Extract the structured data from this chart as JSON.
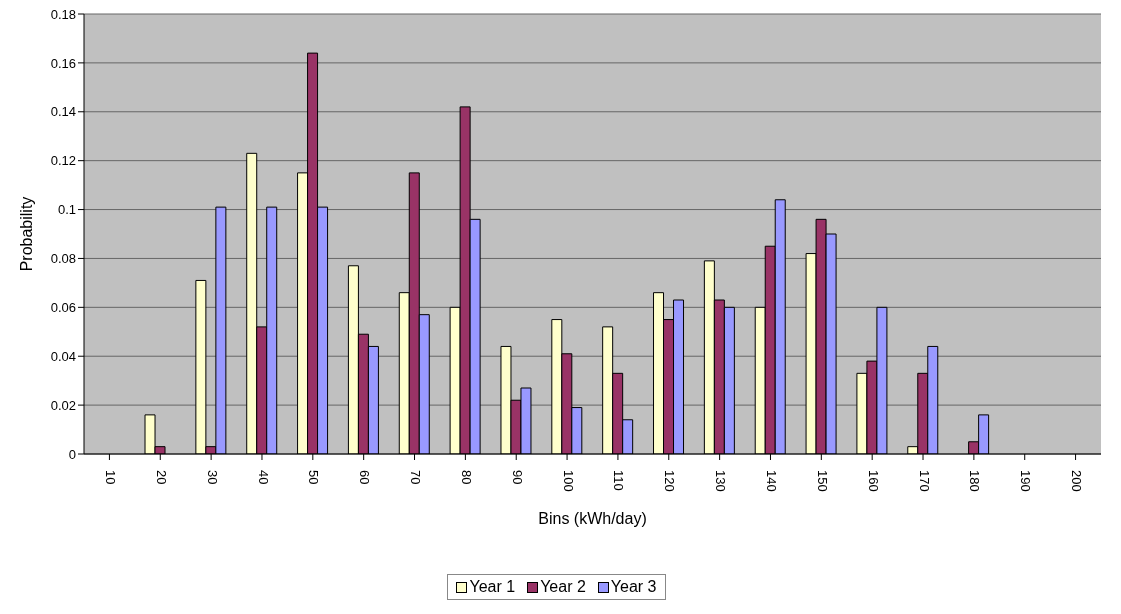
{
  "chart_data": {
    "type": "bar",
    "xlabel": "Bins (kWh/day)",
    "ylabel": "Probability",
    "categories": [
      "10",
      "20",
      "30",
      "40",
      "50",
      "60",
      "70",
      "80",
      "90",
      "100",
      "110",
      "120",
      "130",
      "140",
      "150",
      "160",
      "170",
      "180",
      "190",
      "200"
    ],
    "series": [
      {
        "name": "Year 1",
        "color": "#ffffcc",
        "values": [
          0,
          0.016,
          0.071,
          0.123,
          0.115,
          0.077,
          0.066,
          0.06,
          0.044,
          0.055,
          0.052,
          0.066,
          0.079,
          0.06,
          0.082,
          0.033,
          0.003,
          0,
          0,
          0
        ]
      },
      {
        "name": "Year 2",
        "color": "#993366",
        "values": [
          0,
          0.003,
          0.003,
          0.052,
          0.164,
          0.049,
          0.115,
          0.142,
          0.022,
          0.041,
          0.033,
          0.055,
          0.063,
          0.085,
          0.096,
          0.038,
          0.033,
          0.005,
          0,
          0
        ]
      },
      {
        "name": "Year 3",
        "color": "#9999ff",
        "values": [
          0,
          0,
          0.101,
          0.101,
          0.101,
          0.044,
          0.057,
          0.096,
          0.027,
          0.019,
          0.014,
          0.063,
          0.06,
          0.104,
          0.09,
          0.06,
          0.044,
          0.016,
          0,
          0
        ]
      }
    ],
    "ylim": [
      0,
      0.18
    ],
    "yticks": [
      0,
      0.02,
      0.04,
      0.06,
      0.08,
      0.1,
      0.12,
      0.14,
      0.16,
      0.18
    ],
    "grid": "y",
    "legend": "bottom"
  }
}
